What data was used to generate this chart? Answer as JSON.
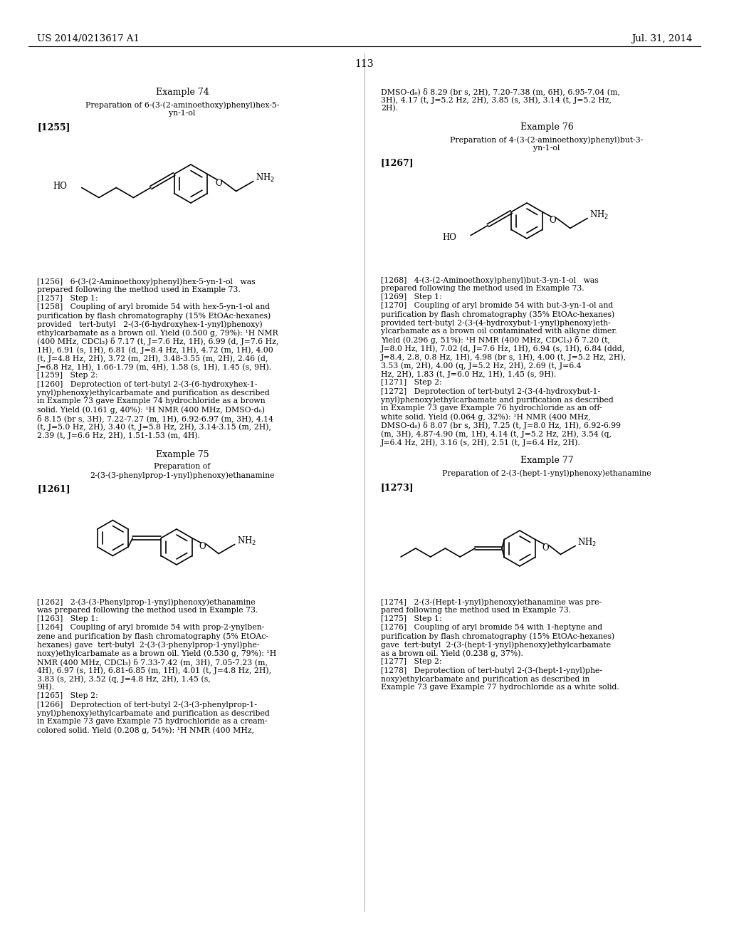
{
  "bg": "#ffffff",
  "header_left": "US 2014/0213617 A1",
  "header_right": "Jul. 31, 2014",
  "page_num": "113",
  "fs_header": 9.5,
  "fs_body": 7.8,
  "fs_example": 9,
  "fs_bracket": 9
}
